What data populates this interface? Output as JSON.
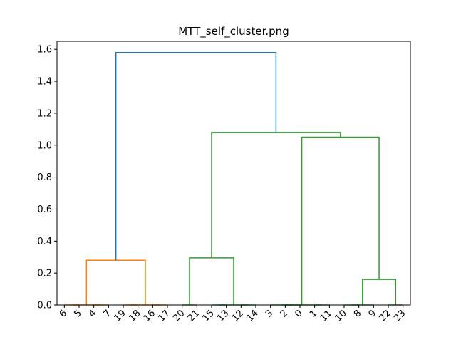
{
  "chart_data": {
    "type": "dendrogram",
    "title": "MTT_self_cluster.png",
    "xlabel": "",
    "ylabel": "",
    "ylim": [
      0,
      1.65
    ],
    "y_ticks": [
      "0.0",
      "0.2",
      "0.4",
      "0.6",
      "0.8",
      "1.0",
      "1.2",
      "1.4",
      "1.6"
    ],
    "grid": false,
    "leaf_order": [
      "6",
      "5",
      "4",
      "7",
      "19",
      "18",
      "16",
      "17",
      "20",
      "21",
      "15",
      "13",
      "12",
      "14",
      "3",
      "2",
      "0",
      "1",
      "11",
      "10",
      "8",
      "9",
      "22",
      "23"
    ],
    "colors": {
      "above_threshold": "#1f77b4",
      "cluster_1": "#ff7f0e",
      "cluster_2": "#2ca02c",
      "axes": "#000000"
    },
    "merges": [
      {
        "left": "leaf:0",
        "right": "leaf:1",
        "height": 0.0,
        "color": "cluster_1"
      },
      {
        "left": "leaf:2",
        "right": "leaf:3",
        "height": 0.0,
        "color": "cluster_1"
      },
      {
        "left": "leaf:4",
        "right": "leaf:5",
        "height": 0.0,
        "color": "cluster_1"
      },
      {
        "left": "leaf:6",
        "right": "leaf:7",
        "height": 0.0,
        "color": "cluster_1"
      },
      {
        "left": "leaf:8",
        "right": "leaf:9",
        "height": 0.0,
        "color": "cluster_2"
      },
      {
        "left": "leaf:10",
        "right": "leaf:11",
        "height": 0.0,
        "color": "cluster_2"
      },
      {
        "left": "leaf:12",
        "right": "leaf:13",
        "height": 0.0,
        "color": "cluster_2"
      },
      {
        "left": "leaf:15",
        "right": "leaf:16",
        "height": 0.0,
        "color": "cluster_2"
      },
      {
        "left": "leaf:17",
        "right": "leaf:18",
        "height": 0.0,
        "color": "cluster_2"
      },
      {
        "left": "leaf:19",
        "right": "leaf:20",
        "height": 0.0,
        "color": "cluster_2"
      },
      {
        "left": "leaf:22",
        "right": "leaf:23",
        "height": 0.0,
        "color": "cluster_2"
      },
      {
        "left": "node:0",
        "right": "node:1",
        "height": 0.0,
        "color": "cluster_1"
      },
      {
        "left": "node:2",
        "right": "node:3",
        "height": 0.0,
        "color": "cluster_1"
      },
      {
        "left": "node:11",
        "right": "node:12",
        "height": 0.28,
        "color": "cluster_1"
      },
      {
        "left": "node:5",
        "right": "node:6",
        "height": 0.0,
        "color": "cluster_2"
      },
      {
        "left": "node:4",
        "right": "node:14",
        "height": 0.295,
        "color": "cluster_2"
      },
      {
        "left": "node:7",
        "right": "leaf:14",
        "height": 0.0,
        "color": "cluster_2"
      },
      {
        "left": "node:16",
        "right": "node:8",
        "height": 0.0,
        "color": "cluster_2"
      },
      {
        "left": "node:9",
        "right": "leaf:21",
        "height": 0.0,
        "color": "cluster_2"
      },
      {
        "left": "node:18",
        "right": "node:10",
        "height": 0.16,
        "color": "cluster_2"
      },
      {
        "left": "node:17",
        "right": "node:19",
        "height": 1.05,
        "color": "cluster_2"
      },
      {
        "left": "node:15",
        "right": "node:20",
        "height": 1.08,
        "color": "cluster_2"
      },
      {
        "left": "node:13",
        "right": "node:21",
        "height": 1.58,
        "color": "above_threshold"
      }
    ]
  }
}
